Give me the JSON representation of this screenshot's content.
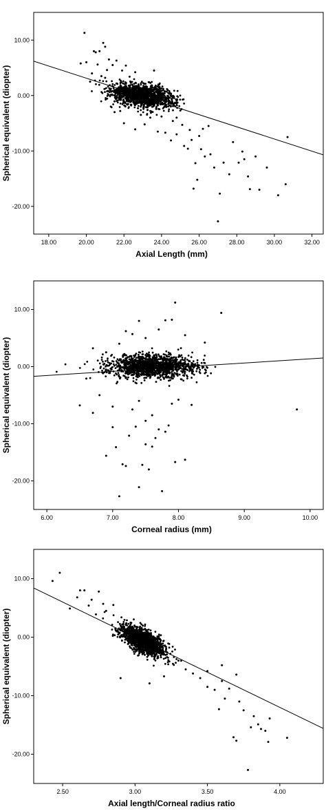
{
  "chart_data": [
    {
      "type": "scatter",
      "title": "",
      "xlabel": "Axial Length (mm)",
      "ylabel": "Spherical equivalent (diopter)",
      "xlim": [
        17.2,
        32.6
      ],
      "ylim": [
        -25,
        15
      ],
      "xticks": [
        18,
        20,
        22,
        24,
        26,
        28,
        30,
        32
      ],
      "xtick_labels": [
        "18.00",
        "20.00",
        "22.00",
        "24.00",
        "26.00",
        "28.00",
        "30.00",
        "32.00"
      ],
      "yticks": [
        10,
        0,
        -10,
        -20
      ],
      "ytick_labels": [
        "10.00",
        "0.00",
        "-10.00",
        "-20.00"
      ],
      "grid": false,
      "legend": "none",
      "fit_line": {
        "x": [
          17.2,
          32.6
        ],
        "y": [
          6.2,
          -10.7
        ]
      },
      "cluster": {
        "center": [
          23.0,
          0.0
        ],
        "spread": [
          0.85,
          1.0
        ],
        "count": 1400,
        "slope": -0.45
      },
      "outliers": [
        [
          19.9,
          11.3
        ],
        [
          19.7,
          5.8
        ],
        [
          20.0,
          6.0
        ],
        [
          20.4,
          8.0
        ],
        [
          20.5,
          7.8
        ],
        [
          20.7,
          8.0
        ],
        [
          20.9,
          9.5
        ],
        [
          21.0,
          8.8
        ],
        [
          20.6,
          5.6
        ],
        [
          21.2,
          6.5
        ],
        [
          21.4,
          5.5
        ],
        [
          21.6,
          6.3
        ],
        [
          20.3,
          4.0
        ],
        [
          20.8,
          3.5
        ],
        [
          20.2,
          2.5
        ],
        [
          21.1,
          4.6
        ],
        [
          22.1,
          5.4
        ],
        [
          22.6,
          4.2
        ],
        [
          23.6,
          4.5
        ],
        [
          21.0,
          3.2
        ],
        [
          21.5,
          -3.0
        ],
        [
          22.0,
          -5.0
        ],
        [
          22.6,
          -6.1
        ],
        [
          23.1,
          -5.2
        ],
        [
          23.8,
          -6.5
        ],
        [
          24.2,
          -6.7
        ],
        [
          24.5,
          -8.1
        ],
        [
          24.8,
          -7.0
        ],
        [
          25.2,
          -9.1
        ],
        [
          25.4,
          -9.6
        ],
        [
          25.6,
          -8.0
        ],
        [
          25.8,
          -12.2
        ],
        [
          25.7,
          -16.8
        ],
        [
          25.9,
          -15.2
        ],
        [
          26.1,
          -9.7
        ],
        [
          26.3,
          -11.0
        ],
        [
          26.6,
          -10.6
        ],
        [
          26.8,
          -13.0
        ],
        [
          27.1,
          -17.7
        ],
        [
          27.3,
          -12.1
        ],
        [
          27.6,
          -14.2
        ],
        [
          27.8,
          -8.4
        ],
        [
          28.1,
          -12.1
        ],
        [
          28.4,
          -11.5
        ],
        [
          28.6,
          -14.6
        ],
        [
          28.7,
          -16.9
        ],
        [
          29.0,
          -11.0
        ],
        [
          29.2,
          -17.0
        ],
        [
          28.3,
          -10.1
        ],
        [
          29.6,
          -13.0
        ],
        [
          30.2,
          -18.0
        ],
        [
          30.6,
          -16.0
        ],
        [
          30.7,
          -7.5
        ],
        [
          27.0,
          -22.7
        ],
        [
          24.0,
          -3.8
        ],
        [
          24.6,
          -4.6
        ],
        [
          25.1,
          -5.3
        ],
        [
          25.5,
          -6.2
        ],
        [
          26.0,
          -7.3
        ],
        [
          26.2,
          -6.0
        ],
        [
          26.5,
          -5.5
        ],
        [
          23.4,
          -4.0
        ],
        [
          22.9,
          -3.5
        ],
        [
          21.8,
          -2.8
        ],
        [
          25.0,
          -2.7
        ],
        [
          24.8,
          -4.0
        ],
        [
          22.3,
          3.4
        ],
        [
          21.9,
          4.5
        ]
      ]
    },
    {
      "type": "scatter",
      "title": "",
      "xlabel": "Corneal radius (mm)",
      "ylabel": "Spherical equivalent (diopter)",
      "xlim": [
        5.8,
        10.2
      ],
      "ylim": [
        -25,
        15
      ],
      "xticks": [
        6,
        7,
        8,
        9,
        10
      ],
      "xtick_labels": [
        "6.00",
        "7.00",
        "8.00",
        "9.00",
        "10.00"
      ],
      "yticks": [
        10,
        0,
        -10,
        -20
      ],
      "ytick_labels": [
        "10.00",
        "0.00",
        "-10.00",
        "-20.00"
      ],
      "grid": false,
      "legend": "none",
      "fit_line": {
        "x": [
          5.8,
          10.2
        ],
        "y": [
          -1.7,
          1.5
        ]
      },
      "cluster": {
        "center": [
          7.6,
          0.0
        ],
        "spread": [
          0.33,
          1.0
        ],
        "count": 1400,
        "slope": 0
      },
      "outliers": [
        [
          7.95,
          11.2
        ],
        [
          8.65,
          9.4
        ],
        [
          7.8,
          8.1
        ],
        [
          7.9,
          8.2
        ],
        [
          7.4,
          8.0
        ],
        [
          7.2,
          6.2
        ],
        [
          7.7,
          6.5
        ],
        [
          7.5,
          5.0
        ],
        [
          8.1,
          5.5
        ],
        [
          6.7,
          3.2
        ],
        [
          8.4,
          4.2
        ],
        [
          6.9,
          2.5
        ],
        [
          7.1,
          4.0
        ],
        [
          7.3,
          5.7
        ],
        [
          6.5,
          -6.8
        ],
        [
          6.6,
          -2.1
        ],
        [
          6.8,
          -5.0
        ],
        [
          7.0,
          -10.6
        ],
        [
          6.9,
          -15.6
        ],
        [
          7.05,
          -14.1
        ],
        [
          7.1,
          -22.7
        ],
        [
          7.15,
          -17.1
        ],
        [
          7.2,
          -17.4
        ],
        [
          7.25,
          -12.1
        ],
        [
          7.35,
          -10.5
        ],
        [
          7.4,
          -21.1
        ],
        [
          7.45,
          -17.2
        ],
        [
          7.5,
          -13.6
        ],
        [
          7.55,
          -18.0
        ],
        [
          7.6,
          -14.0
        ],
        [
          7.65,
          -12.5
        ],
        [
          7.7,
          -11.0
        ],
        [
          7.75,
          -21.8
        ],
        [
          7.8,
          -11.4
        ],
        [
          7.85,
          -10.3
        ],
        [
          7.95,
          -16.7
        ],
        [
          8.1,
          -16.3
        ],
        [
          7.3,
          -7.5
        ],
        [
          7.6,
          -8.5
        ],
        [
          7.5,
          -9.5
        ],
        [
          7.9,
          -6.5
        ],
        [
          8.2,
          -6.7
        ],
        [
          9.8,
          -7.5
        ],
        [
          6.7,
          -8.1
        ],
        [
          7.0,
          -7.0
        ],
        [
          8.0,
          -5.8
        ],
        [
          7.4,
          -6.0
        ]
      ]
    },
    {
      "type": "scatter",
      "title": "",
      "xlabel": "Axial length/Corneal radius ratio",
      "ylabel": "Spherical equivalent (diopter)",
      "xlim": [
        2.3,
        4.3
      ],
      "ylim": [
        -25,
        15
      ],
      "xticks": [
        2.5,
        3.0,
        3.5,
        4.0
      ],
      "xtick_labels": [
        "2.50",
        "3.00",
        "3.50",
        "4.00"
      ],
      "yticks": [
        10,
        0,
        -10,
        -20
      ],
      "ytick_labels": [
        "10.00",
        "0.00",
        "-10.00",
        "-20.00"
      ],
      "grid": false,
      "legend": "none",
      "fit_line": {
        "x": [
          2.3,
          4.3
        ],
        "y": [
          8.4,
          -15.6
        ]
      },
      "cluster": {
        "center": [
          3.05,
          -0.6
        ],
        "spread": [
          0.08,
          1.0
        ],
        "count": 1400,
        "slope": -12
      },
      "outliers": [
        [
          2.48,
          11.0
        ],
        [
          2.43,
          9.6
        ],
        [
          2.62,
          8.0
        ],
        [
          2.65,
          8.0
        ],
        [
          2.6,
          6.8
        ],
        [
          2.7,
          6.4
        ],
        [
          2.75,
          7.8
        ],
        [
          2.78,
          5.7
        ],
        [
          2.55,
          4.9
        ],
        [
          2.68,
          5.4
        ],
        [
          2.8,
          4.5
        ],
        [
          2.85,
          5.5
        ],
        [
          2.73,
          3.9
        ],
        [
          3.35,
          -5.5
        ],
        [
          3.4,
          -6.2
        ],
        [
          3.45,
          -7.0
        ],
        [
          3.5,
          -8.5
        ],
        [
          3.55,
          -9.0
        ],
        [
          3.6,
          -7.5
        ],
        [
          3.62,
          -10.5
        ],
        [
          3.58,
          -12.3
        ],
        [
          3.65,
          -8.8
        ],
        [
          3.7,
          -6.4
        ],
        [
          3.72,
          -11.0
        ],
        [
          3.75,
          -12.5
        ],
        [
          3.68,
          -17.1
        ],
        [
          3.7,
          -17.7
        ],
        [
          3.8,
          -15.4
        ],
        [
          3.85,
          -14.9
        ],
        [
          3.87,
          -15.7
        ],
        [
          3.82,
          -13.5
        ],
        [
          3.9,
          -16.0
        ],
        [
          3.92,
          -17.9
        ],
        [
          3.93,
          -13.9
        ],
        [
          4.05,
          -17.2
        ],
        [
          3.78,
          -22.7
        ],
        [
          3.6,
          -4.8
        ],
        [
          3.5,
          -5.8
        ],
        [
          3.3,
          -4.0
        ],
        [
          2.9,
          -7.0
        ],
        [
          3.1,
          -7.9
        ],
        [
          3.2,
          -6.7
        ]
      ]
    }
  ]
}
